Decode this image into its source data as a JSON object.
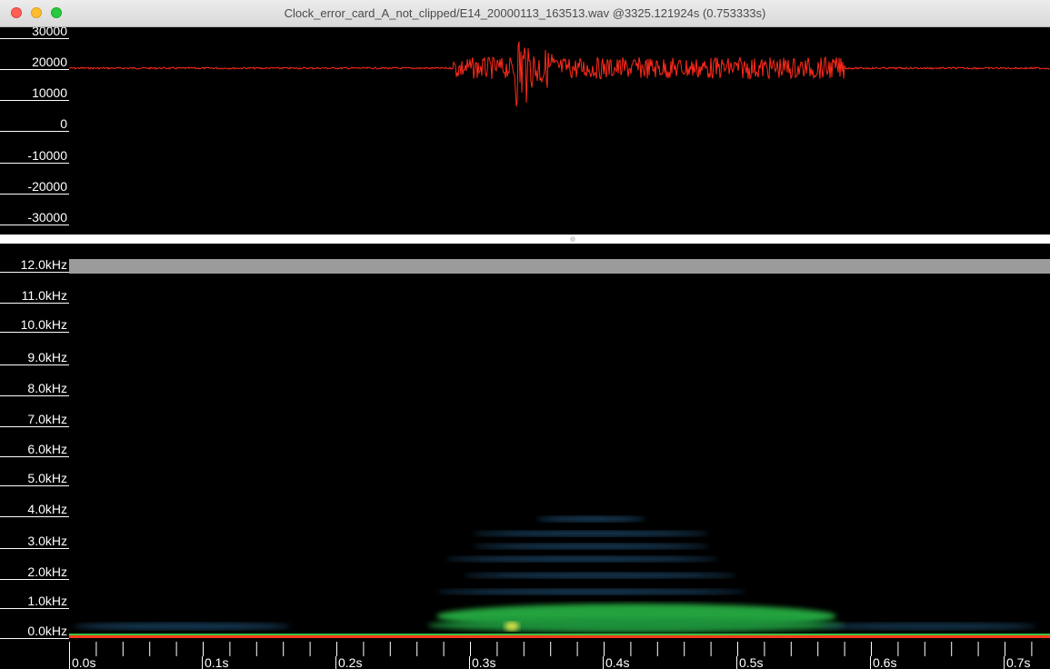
{
  "window": {
    "title": "Clock_error_card_A_not_clipped/E14_20000113_163513.wav @3325.121924s (0.753333s)"
  },
  "waveform": {
    "color": "#ff2a1a",
    "y_labels": [
      "30000",
      "20000",
      "10000",
      "0",
      "-10000",
      "-20000",
      "-30000"
    ]
  },
  "spectrogram": {
    "y_labels": [
      "12.0kHz",
      "11.0kHz",
      "10.0kHz",
      "9.0kHz",
      "8.0kHz",
      "7.0kHz",
      "6.0kHz",
      "5.0kHz",
      "4.0kHz",
      "3.0kHz",
      "2.0kHz",
      "1.0kHz",
      "0.0kHz"
    ],
    "x_labels": [
      "0.0s",
      "0.1s",
      "0.2s",
      "0.3s",
      "0.4s",
      "0.5s",
      "0.6s",
      "0.7s"
    ],
    "band_color": "#9b9b9b",
    "baseline_color": "#ff3b1a",
    "energy_colors": [
      "#1e8f3a",
      "#2bbf4a",
      "#1a4a6a"
    ]
  }
}
